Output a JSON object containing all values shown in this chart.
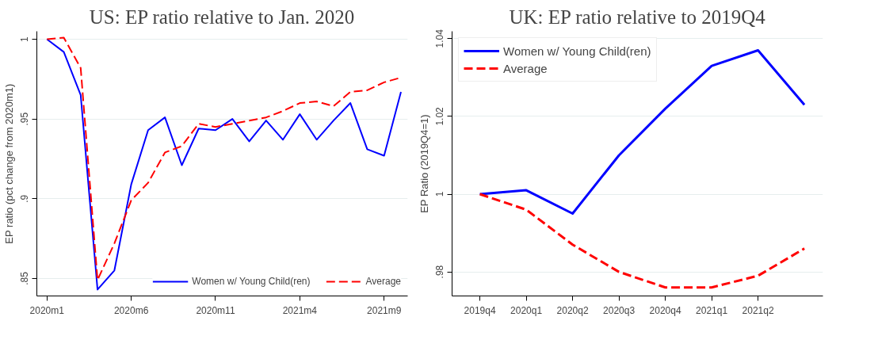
{
  "chart_data": [
    {
      "type": "line",
      "title": "US: EP ratio relative to Jan. 2020",
      "ylabel": "EP ratio (pct change from 2020m1)",
      "categories": [
        "2020m1",
        null,
        null,
        null,
        null,
        "2020m6",
        null,
        null,
        null,
        null,
        "2020m11",
        null,
        null,
        null,
        null,
        "2021m4",
        null,
        null,
        null,
        null,
        "2021m9",
        null
      ],
      "ylim": [
        0.839,
        1.005
      ],
      "yticks": [
        {
          "value": 0.85,
          "label": ".85"
        },
        {
          "value": 0.9,
          "label": ".9"
        },
        {
          "value": 0.95,
          "label": ".95"
        },
        1
      ],
      "grid": "y",
      "legend": "bottom right",
      "series": [
        {
          "name": "Women w/ Young Child(ren)",
          "color": "#0000ff",
          "line_style": "solid",
          "values": [
            1.0,
            0.992,
            0.965,
            0.843,
            0.855,
            0.909,
            0.943,
            0.951,
            0.921,
            0.944,
            0.943,
            0.95,
            0.936,
            0.949,
            0.937,
            0.953,
            0.937,
            0.949,
            0.96,
            0.931,
            0.927,
            0.967
          ]
        },
        {
          "name": "Average",
          "color": "#ff0000",
          "line_style": "dashed",
          "values": [
            1.0,
            1.001,
            0.982,
            0.849,
            0.872,
            0.899,
            0.91,
            0.929,
            0.933,
            0.947,
            0.945,
            0.947,
            0.949,
            0.951,
            0.955,
            0.96,
            0.961,
            0.958,
            0.967,
            0.968,
            0.973,
            0.976
          ]
        }
      ]
    },
    {
      "type": "line",
      "title": "UK: EP ratio relative to 2019Q4",
      "ylabel": "EP Ratio (2019Q4=1)",
      "categories": [
        "2019q4",
        "2020q1",
        "2020q2",
        "2020q3",
        "2020q4",
        "2021q1",
        "2021q2",
        null
      ],
      "ylim": [
        0.9738,
        1.0419
      ],
      "yticks": [
        {
          "value": 0.98,
          "label": ".98"
        },
        1,
        1.02,
        1.04
      ],
      "grid": "y",
      "legend": "top left",
      "series": [
        {
          "name": "Women w/ Young Child(ren)",
          "color": "#0000ff",
          "line_style": "solid",
          "values": [
            1.0,
            1.001,
            0.995,
            1.01,
            1.022,
            1.033,
            1.037,
            1.023
          ]
        },
        {
          "name": "Average",
          "color": "#ff0000",
          "line_style": "dashed",
          "values": [
            1.0,
            0.996,
            0.987,
            0.98,
            0.976,
            0.976,
            0.979,
            0.986
          ]
        }
      ]
    }
  ]
}
